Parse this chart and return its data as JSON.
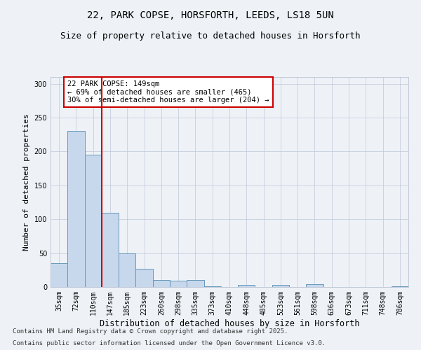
{
  "title1": "22, PARK COPSE, HORSFORTH, LEEDS, LS18 5UN",
  "title2": "Size of property relative to detached houses in Horsforth",
  "xlabel": "Distribution of detached houses by size in Horsforth",
  "ylabel": "Number of detached properties",
  "categories": [
    "35sqm",
    "72sqm",
    "110sqm",
    "147sqm",
    "185sqm",
    "223sqm",
    "260sqm",
    "298sqm",
    "335sqm",
    "373sqm",
    "410sqm",
    "448sqm",
    "485sqm",
    "523sqm",
    "561sqm",
    "598sqm",
    "636sqm",
    "673sqm",
    "711sqm",
    "748sqm",
    "786sqm"
  ],
  "values": [
    35,
    230,
    195,
    110,
    50,
    27,
    10,
    9,
    10,
    1,
    0,
    3,
    0,
    3,
    0,
    4,
    0,
    0,
    0,
    0,
    1
  ],
  "bar_color": "#c8d8ec",
  "bar_edge_color": "#6699bb",
  "vline_x": 2.5,
  "vline_color": "#cc0000",
  "annotation_text": "22 PARK COPSE: 149sqm\n← 69% of detached houses are smaller (465)\n30% of semi-detached houses are larger (204) →",
  "annotation_box_color": "#ffffff",
  "annotation_box_edge": "#cc0000",
  "footer1": "Contains HM Land Registry data © Crown copyright and database right 2025.",
  "footer2": "Contains public sector information licensed under the Open Government Licence v3.0.",
  "background_color": "#eef2f7",
  "ylim": [
    0,
    310
  ],
  "title1_fontsize": 10,
  "title2_fontsize": 9,
  "xlabel_fontsize": 8.5,
  "ylabel_fontsize": 8,
  "tick_fontsize": 7,
  "footer_fontsize": 6.5
}
